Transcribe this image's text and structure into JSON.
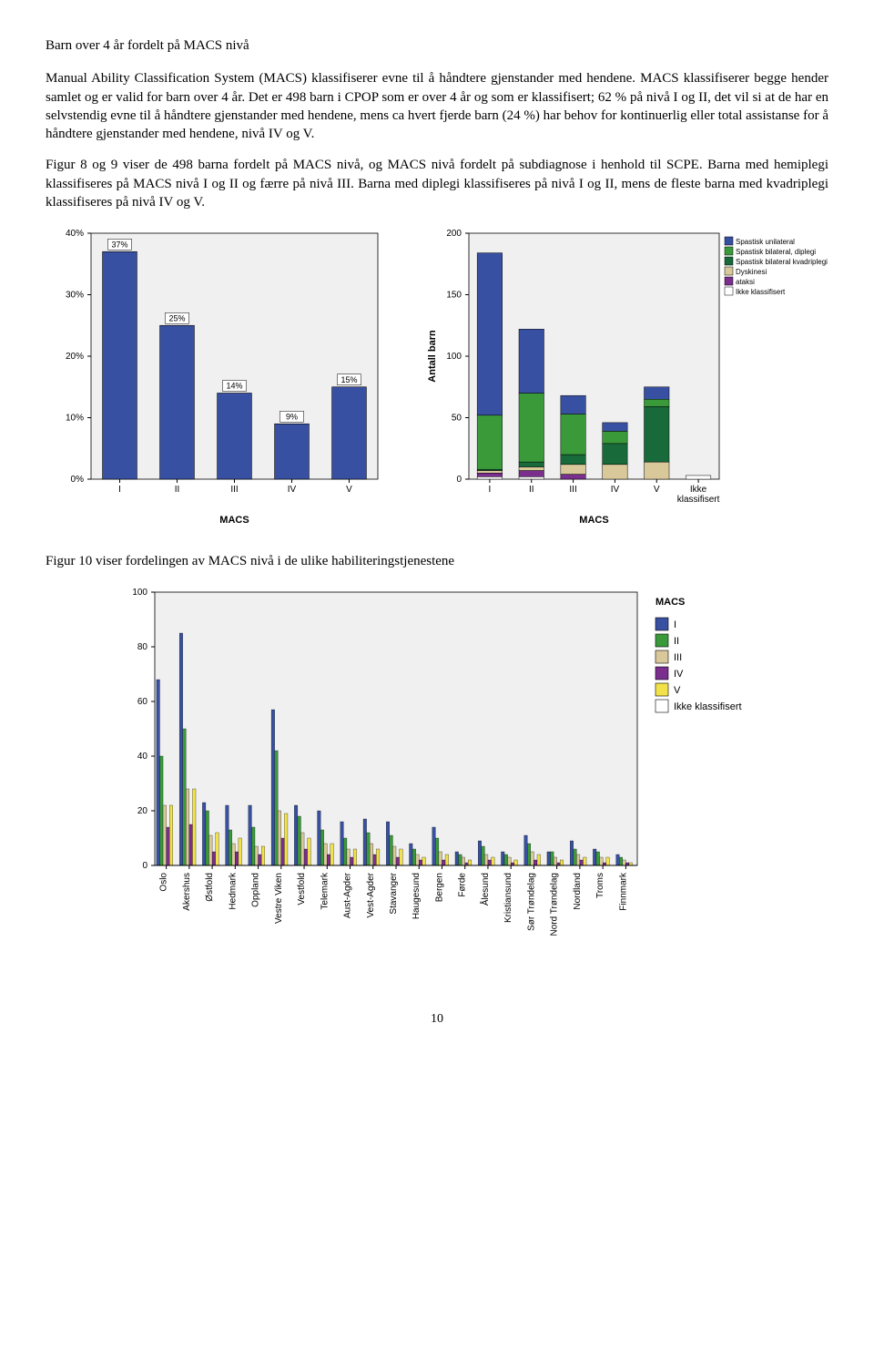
{
  "title": "Barn over 4 år fordelt på MACS nivå",
  "para1": "Manual Ability Classification System (MACS) klassifiserer evne til å håndtere gjenstander med hendene. MACS klassifiserer begge hender samlet og er valid for barn over 4 år. Det er 498 barn i CPOP som er over 4 år og som er klassifisert; 62 % på nivå I og II, det vil si at de har en selvstendig evne til å håndtere gjenstander med hendene, mens ca hvert fjerde barn (24 %) har behov for kontinuerlig eller total assistanse for å håndtere gjenstander med hendene, nivå IV og V.",
  "para2": "Figur 8 og 9 viser de 498 barna fordelt på MACS nivå, og MACS nivå fordelt på subdiagnose i henhold til SCPE. Barna med hemiplegi klassifiseres på MACS nivå I og II og færre på nivå III. Barna med diplegi klassifiseres på nivå I og II, mens de fleste barna med kvadriplegi klassifiseres på nivå IV og V.",
  "caption2": "Figur 10 viser fordelingen av MACS nivå i de ulike habiliteringstjenestene",
  "page_number": "10",
  "chart8": {
    "type": "bar",
    "categories": [
      "I",
      "II",
      "III",
      "IV",
      "V"
    ],
    "values": [
      37,
      25,
      14,
      9,
      15
    ],
    "labels": [
      "37%",
      "25%",
      "14%",
      "9%",
      "15%"
    ],
    "ylim": [
      0,
      40
    ],
    "yticks": [
      "0%",
      "10%",
      "20%",
      "30%",
      "40%"
    ],
    "bar_color": "#3850a2",
    "border": "#000000",
    "background": "#f0f0f0",
    "xaxis_title": "MACS"
  },
  "chart9": {
    "type": "stacked-bar",
    "categories": [
      "I",
      "II",
      "III",
      "IV",
      "V",
      "Ikke klassifisert"
    ],
    "ylim": [
      0,
      200
    ],
    "yticks": [
      0,
      50,
      100,
      150,
      200
    ],
    "colors": {
      "unilateral": "#3850a2",
      "diplegi": "#3a9a3a",
      "kvadriplegi": "#186a3b",
      "dyskinesi": "#d9c89a",
      "ataksi": "#7a2e8e",
      "ikke": "#ffffff"
    },
    "series": [
      {
        "cat": "I",
        "stack": [
          [
            "ikke",
            2
          ],
          [
            "ataksi",
            3
          ],
          [
            "dyskinesi",
            2
          ],
          [
            "kvadriplegi",
            1
          ],
          [
            "diplegi",
            44
          ],
          [
            "unilateral",
            132
          ]
        ]
      },
      {
        "cat": "II",
        "stack": [
          [
            "ikke",
            2
          ],
          [
            "ataksi",
            5
          ],
          [
            "dyskinesi",
            3
          ],
          [
            "kvadriplegi",
            4
          ],
          [
            "diplegi",
            56
          ],
          [
            "unilateral",
            52
          ]
        ]
      },
      {
        "cat": "III",
        "stack": [
          [
            "ikke",
            0
          ],
          [
            "ataksi",
            4
          ],
          [
            "dyskinesi",
            8
          ],
          [
            "kvadriplegi",
            8
          ],
          [
            "diplegi",
            33
          ],
          [
            "unilateral",
            15
          ]
        ]
      },
      {
        "cat": "IV",
        "stack": [
          [
            "ikke",
            0
          ],
          [
            "ataksi",
            0
          ],
          [
            "dyskinesi",
            12
          ],
          [
            "kvadriplegi",
            17
          ],
          [
            "diplegi",
            10
          ],
          [
            "unilateral",
            7
          ]
        ]
      },
      {
        "cat": "V",
        "stack": [
          [
            "ikke",
            0
          ],
          [
            "ataksi",
            0
          ],
          [
            "dyskinesi",
            14
          ],
          [
            "kvadriplegi",
            45
          ],
          [
            "diplegi",
            6
          ],
          [
            "unilateral",
            10
          ]
        ]
      },
      {
        "cat": "Ikke klassifisert",
        "stack": [
          [
            "ikke",
            3
          ]
        ]
      }
    ],
    "legend": [
      [
        "Spastisk unilateral",
        "#3850a2"
      ],
      [
        "Spastisk bilateral, diplegi",
        "#3a9a3a"
      ],
      [
        "Spastisk bilateral kvadriplegi",
        "#186a3b"
      ],
      [
        "Dyskinesi",
        "#d9c89a"
      ],
      [
        "ataksi",
        "#7a2e8e"
      ],
      [
        "Ikke klassifisert",
        "#ffffff"
      ]
    ],
    "yaxis_title": "Antall barn",
    "xaxis_title": "MACS",
    "background": "#f0f0f0"
  },
  "chart10": {
    "type": "grouped-bar",
    "ylim": [
      0,
      100
    ],
    "yticks": [
      0,
      20,
      40,
      60,
      80,
      100
    ],
    "background": "#f0f0f0",
    "legend_title": "MACS",
    "legend": [
      [
        "I",
        "#3850a2"
      ],
      [
        "II",
        "#3a9a3a"
      ],
      [
        "III",
        "#d9c89a"
      ],
      [
        "IV",
        "#7a2e8e"
      ],
      [
        "V",
        "#f2e24a"
      ],
      [
        "Ikke klassifisert",
        "#ffffff"
      ]
    ],
    "categories": [
      "Oslo",
      "Akershus",
      "Østfold",
      "Hedmark",
      "Oppland",
      "Vestre Viken",
      "Vestfold",
      "Telemark",
      "Aust-Agder",
      "Vest-Agder",
      "Stavanger",
      "Haugesund",
      "Bergen",
      "Førde",
      "Ålesund",
      "Kristiansund",
      "Sør Trøndelag",
      "Nord Trøndelag",
      "Nordland",
      "Troms",
      "Finnmark"
    ],
    "data": [
      {
        "name": "Oslo",
        "vals": {
          "I": 68,
          "II": 40,
          "III": 22,
          "IV": 14,
          "V": 22,
          "ikke": 0
        }
      },
      {
        "name": "Akershus",
        "vals": {
          "I": 85,
          "II": 50,
          "III": 28,
          "IV": 15,
          "V": 28,
          "ikke": 0
        }
      },
      {
        "name": "Østfold",
        "vals": {
          "I": 23,
          "II": 20,
          "III": 11,
          "IV": 5,
          "V": 12,
          "ikke": 0
        }
      },
      {
        "name": "Hedmark",
        "vals": {
          "I": 22,
          "II": 13,
          "III": 8,
          "IV": 5,
          "V": 10,
          "ikke": 0
        }
      },
      {
        "name": "Oppland",
        "vals": {
          "I": 22,
          "II": 14,
          "III": 7,
          "IV": 4,
          "V": 7,
          "ikke": 0
        }
      },
      {
        "name": "Vestre Viken",
        "vals": {
          "I": 57,
          "II": 42,
          "III": 20,
          "IV": 10,
          "V": 19,
          "ikke": 0
        }
      },
      {
        "name": "Vestfold",
        "vals": {
          "I": 22,
          "II": 18,
          "III": 12,
          "IV": 6,
          "V": 10,
          "ikke": 0
        }
      },
      {
        "name": "Telemark",
        "vals": {
          "I": 20,
          "II": 13,
          "III": 8,
          "IV": 4,
          "V": 8,
          "ikke": 0
        }
      },
      {
        "name": "Aust-Agder",
        "vals": {
          "I": 16,
          "II": 10,
          "III": 6,
          "IV": 3,
          "V": 6,
          "ikke": 0
        }
      },
      {
        "name": "Vest-Agder",
        "vals": {
          "I": 17,
          "II": 12,
          "III": 8,
          "IV": 4,
          "V": 6,
          "ikke": 0
        }
      },
      {
        "name": "Stavanger",
        "vals": {
          "I": 16,
          "II": 11,
          "III": 7,
          "IV": 3,
          "V": 6,
          "ikke": 0
        }
      },
      {
        "name": "Haugesund",
        "vals": {
          "I": 8,
          "II": 6,
          "III": 4,
          "IV": 2,
          "V": 3,
          "ikke": 0
        }
      },
      {
        "name": "Bergen",
        "vals": {
          "I": 14,
          "II": 10,
          "III": 5,
          "IV": 2,
          "V": 4,
          "ikke": 0
        }
      },
      {
        "name": "Førde",
        "vals": {
          "I": 5,
          "II": 4,
          "III": 3,
          "IV": 1,
          "V": 2,
          "ikke": 0
        }
      },
      {
        "name": "Ålesund",
        "vals": {
          "I": 9,
          "II": 7,
          "III": 4,
          "IV": 2,
          "V": 3,
          "ikke": 0
        }
      },
      {
        "name": "Kristiansund",
        "vals": {
          "I": 5,
          "II": 4,
          "III": 3,
          "IV": 1,
          "V": 2,
          "ikke": 0
        }
      },
      {
        "name": "Sør Trøndelag",
        "vals": {
          "I": 11,
          "II": 8,
          "III": 5,
          "IV": 2,
          "V": 4,
          "ikke": 0
        }
      },
      {
        "name": "Nord Trøndelag",
        "vals": {
          "I": 5,
          "II": 5,
          "III": 3,
          "IV": 1,
          "V": 2,
          "ikke": 0
        }
      },
      {
        "name": "Nordland",
        "vals": {
          "I": 9,
          "II": 6,
          "III": 4,
          "IV": 2,
          "V": 3,
          "ikke": 0
        }
      },
      {
        "name": "Troms",
        "vals": {
          "I": 6,
          "II": 5,
          "III": 3,
          "IV": 1,
          "V": 3,
          "ikke": 0
        }
      },
      {
        "name": "Finnmark",
        "vals": {
          "I": 4,
          "II": 3,
          "III": 2,
          "IV": 1,
          "V": 1,
          "ikke": 0
        }
      }
    ]
  }
}
